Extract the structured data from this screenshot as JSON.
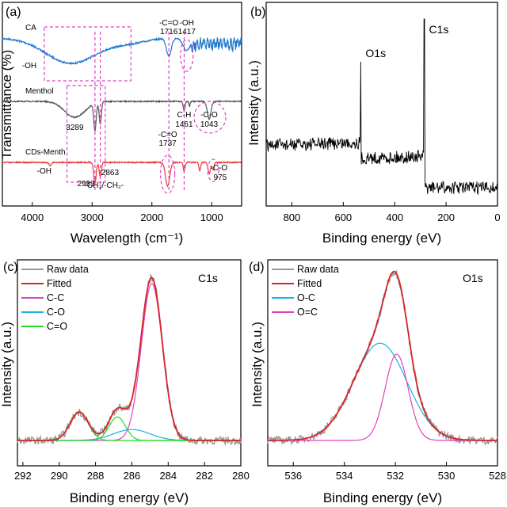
{
  "chart_data": [
    {
      "panel": "(a)",
      "type": "line",
      "xlabel": "Wavelength (cm⁻¹)",
      "ylabel": "Transmittance (%)",
      "xlim": [
        4500,
        500
      ],
      "xticks": [
        4000,
        3000,
        2000,
        1000
      ],
      "series": [
        {
          "name": "CA",
          "color": "#1f77d0",
          "offset": 0
        },
        {
          "name": "Menthol",
          "color": "#555555",
          "offset": 1
        },
        {
          "name": "CDs-Menth",
          "color": "#e8383b",
          "offset": 2
        }
      ],
      "annotations": [
        {
          "text": "-C=O",
          "x": 1716,
          "row": 0,
          "dy": -2
        },
        {
          "text": "1716",
          "x": 1716,
          "row": 0,
          "dy": 9
        },
        {
          "text": "-OH",
          "x": 1417,
          "row": 0,
          "dy": -2
        },
        {
          "text": "1417",
          "x": 1417,
          "row": 0,
          "dy": 9
        },
        {
          "text": "-OH",
          "x": 4050,
          "row": 0,
          "dy": 52
        },
        {
          "text": "3289",
          "x": 3289,
          "row": 1,
          "dy": 50
        },
        {
          "text": "C-H",
          "x": 1461,
          "row": 1,
          "dy": 34
        },
        {
          "text": "1461",
          "x": 1461,
          "row": 1,
          "dy": 46
        },
        {
          "text": "-C-O",
          "x": 1043,
          "row": 1,
          "dy": 34
        },
        {
          "text": "1043",
          "x": 1043,
          "row": 1,
          "dy": 46
        },
        {
          "text": "-C=O",
          "x": 1737,
          "row": 2,
          "dy": -18
        },
        {
          "text": "1737",
          "x": 1737,
          "row": 2,
          "dy": -7
        },
        {
          "text": "-OH",
          "x": 3800,
          "row": 2,
          "dy": 28
        },
        {
          "text": "2952",
          "x": 3100,
          "row": 2,
          "dy": 44
        },
        {
          "text": "2863",
          "x": 2700,
          "row": 2,
          "dy": 30
        },
        {
          "text": "-CH₃/-CH₂-",
          "x": 2800,
          "row": 2,
          "dy": 46
        },
        {
          "text": "-C-O",
          "x": 880,
          "row": 2,
          "dy": 24
        },
        {
          "text": "975",
          "x": 860,
          "row": 2,
          "dy": 36
        }
      ]
    },
    {
      "panel": "(b)",
      "type": "line",
      "xlabel": "Binding energy (eV)",
      "ylabel": "Intensity (a.u.)",
      "xlim": [
        900,
        0
      ],
      "xticks": [
        800,
        600,
        400,
        200,
        0
      ],
      "series": [
        {
          "name": "",
          "color": "#000000"
        }
      ],
      "peaks": [
        {
          "text": "O1s",
          "x": 532
        },
        {
          "text": "C1s",
          "x": 285
        }
      ]
    },
    {
      "panel": "(c)",
      "type": "line",
      "label": "C1s",
      "xlabel": "Binding energy (eV)",
      "ylabel": "Intensity (a.u.)",
      "xlim": [
        292.3,
        280
      ],
      "xticks": [
        292,
        290,
        288,
        286,
        284,
        282,
        280
      ],
      "legend": [
        {
          "name": "Raw data",
          "color": "#999999"
        },
        {
          "name": "Fitted",
          "color": "#d62728"
        },
        {
          "name": "C-C",
          "color": "#e040c0"
        },
        {
          "name": "C-O",
          "color": "#1ab0e8"
        },
        {
          "name": "C=O",
          "color": "#22dd22"
        }
      ],
      "components": [
        {
          "name": "C-C",
          "center": 284.9,
          "height": 1.0,
          "sigma": 0.58
        },
        {
          "name": "C-O",
          "center": 286.0,
          "height": 0.07,
          "sigma": 1.0
        },
        {
          "name": "C=O",
          "center": 286.8,
          "height": 0.15,
          "sigma": 0.45
        },
        {
          "name": "C=O2",
          "center": 288.9,
          "height": 0.18,
          "sigma": 0.5
        }
      ]
    },
    {
      "panel": "(d)",
      "type": "line",
      "label": "O1s",
      "xlabel": "Binding energy (eV)",
      "ylabel": "Intensity (a.u.)",
      "xlim": [
        537,
        528
      ],
      "xticks": [
        536,
        534,
        532,
        530,
        528
      ],
      "legend": [
        {
          "name": "Raw data",
          "color": "#999999"
        },
        {
          "name": "Fitted",
          "color": "#d62728"
        },
        {
          "name": "O-C",
          "color": "#1ab0e8"
        },
        {
          "name": "O=C",
          "color": "#e040c0"
        }
      ],
      "components": [
        {
          "name": "O-C",
          "center": 532.6,
          "height": 0.62,
          "sigma": 1.05
        },
        {
          "name": "O=C",
          "center": 531.95,
          "height": 0.55,
          "sigma": 0.45
        }
      ]
    }
  ]
}
